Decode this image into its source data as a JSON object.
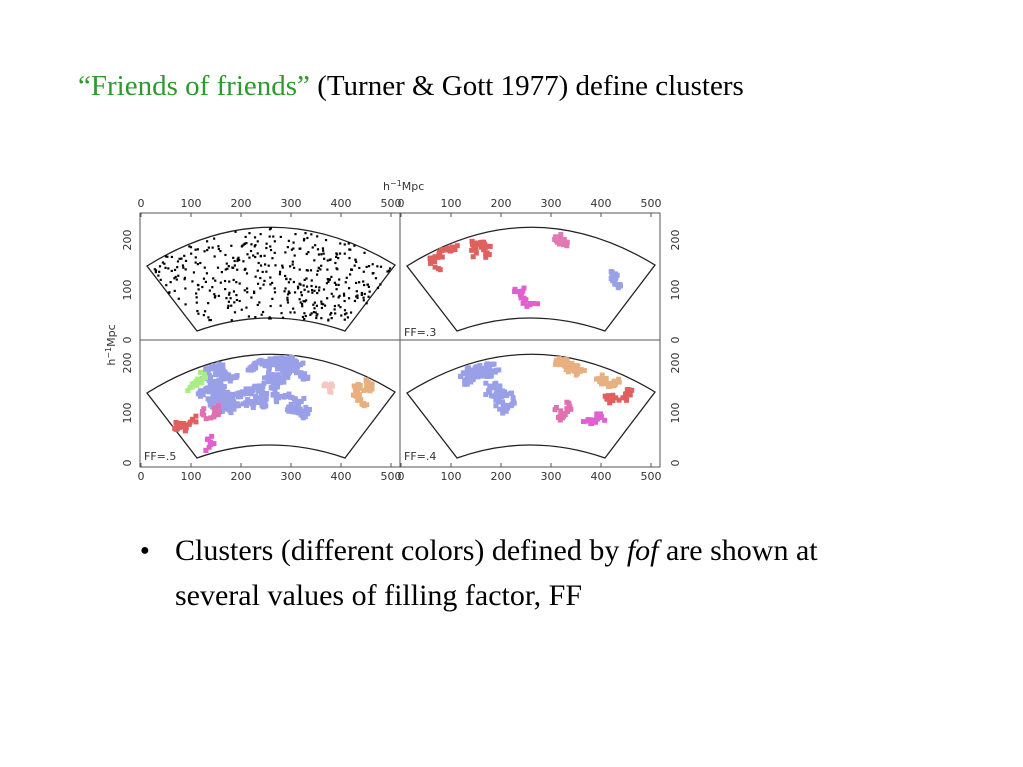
{
  "title": {
    "quoted": "“Friends of friends”",
    "rest": "(Turner & Gott 1977) define clusters"
  },
  "figure": {
    "unit": {
      "base": "h",
      "exponent": "−1",
      "name": "Mpc"
    },
    "top_ticks_left": [
      "0",
      "100",
      "200",
      "300",
      "400",
      "500"
    ],
    "top_ticks_right": [
      "0",
      "100",
      "200",
      "300",
      "400",
      "500"
    ],
    "bottom_ticks_left": [
      "0",
      "100",
      "200",
      "300",
      "400",
      "500"
    ],
    "bottom_ticks_right": [
      "0",
      "100",
      "200",
      "300",
      "400",
      "500"
    ],
    "left_ticks_top": [
      "0",
      "100",
      "200"
    ],
    "left_ticks_bottom": [
      "0",
      "100",
      "200"
    ],
    "right_ticks_top": [
      "0",
      "100",
      "200"
    ],
    "right_ticks_bottom": [
      "0",
      "100",
      "200"
    ],
    "panel_labels": [
      "FF=.3",
      "FF=.5",
      "FF=.4"
    ]
  },
  "bullet": {
    "before": "Clusters (different colors) defined by ",
    "emphasis": "fof",
    "after": " are shown at several values of filling factor, FF"
  }
}
